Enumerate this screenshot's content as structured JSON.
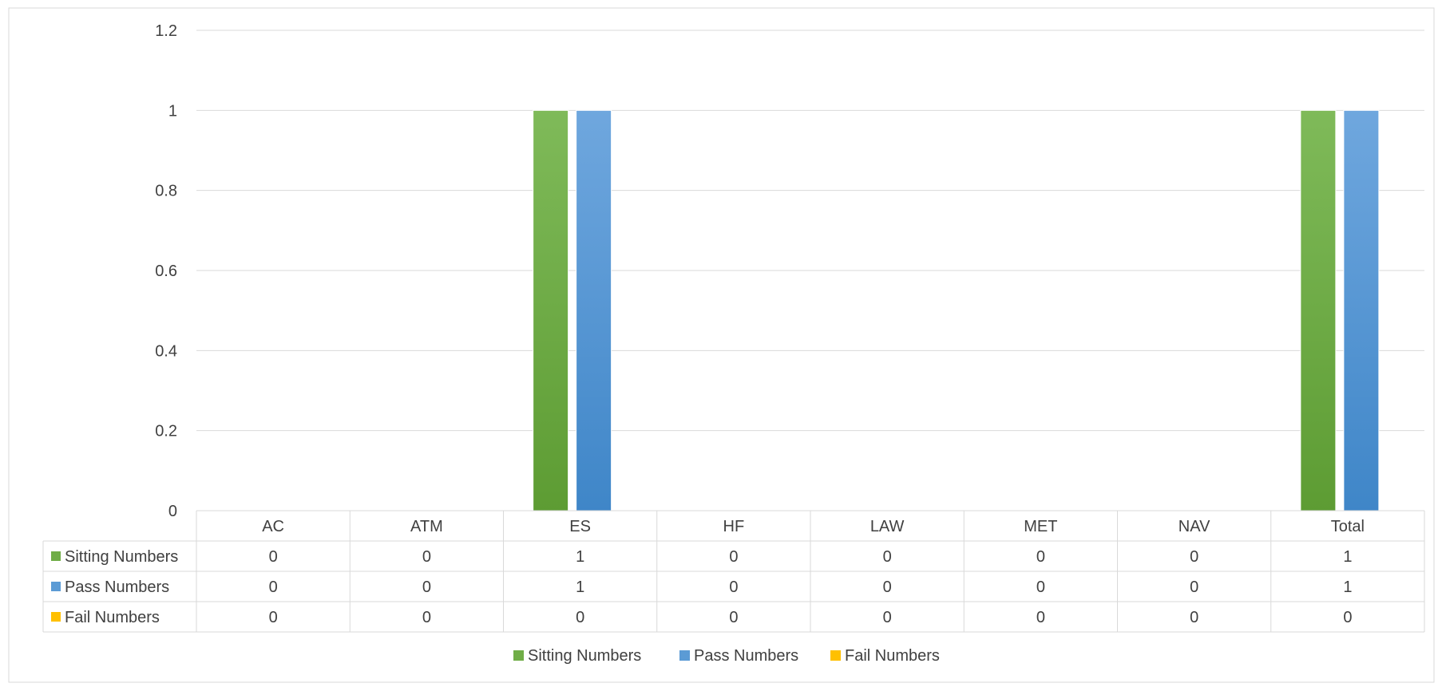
{
  "chart_data": {
    "type": "bar",
    "title": "",
    "xlabel": "",
    "ylabel": "",
    "ylim": [
      0,
      1.2
    ],
    "yticks": [
      "0",
      "0.2",
      "0.4",
      "0.6",
      "0.8",
      "1",
      "1.2"
    ],
    "grid": true,
    "legend_position": "bottom",
    "has_data_table": true,
    "categories": [
      "AC",
      "ATM",
      "ES",
      "HF",
      "LAW",
      "MET",
      "NAV",
      "Total"
    ],
    "series": [
      {
        "name": "Sitting Numbers",
        "color": "#70ad47",
        "values": [
          0,
          0,
          1,
          0,
          0,
          0,
          0,
          1
        ]
      },
      {
        "name": "Pass Numbers",
        "color": "#5b9bd5",
        "values": [
          0,
          0,
          1,
          0,
          0,
          0,
          0,
          1
        ]
      },
      {
        "name": "Fail Numbers",
        "color": "#ffc000",
        "values": [
          0,
          0,
          0,
          0,
          0,
          0,
          0,
          0
        ]
      }
    ]
  }
}
